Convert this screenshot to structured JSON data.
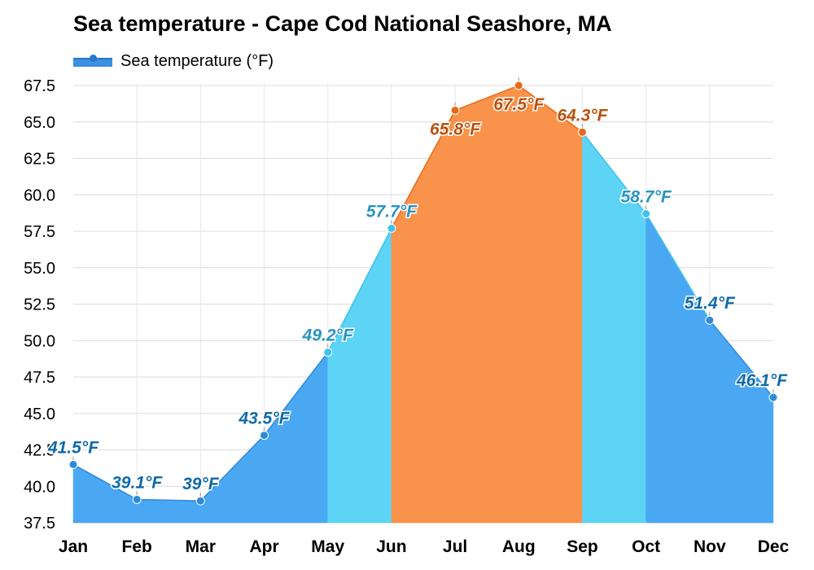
{
  "title": "Sea temperature - Cape Cod National Seashore, MA",
  "legend_label": "Sea temperature (°F)",
  "colors": {
    "cold": "#4aa8f3",
    "mild": "#5dd3f6",
    "warm": "#f9924a",
    "cold_line": "#2e8ad8",
    "mild_line": "#3ec2ee",
    "warm_line": "#e86a18",
    "cold_label": "#0f6aa8",
    "mild_label": "#2a93c2",
    "warm_label": "#b9520e"
  },
  "chart_data": {
    "type": "area",
    "title": "Sea temperature - Cape Cod National Seashore, MA",
    "xlabel": "",
    "ylabel": "",
    "categories": [
      "Jan",
      "Feb",
      "Mar",
      "Apr",
      "May",
      "Jun",
      "Jul",
      "Aug",
      "Sep",
      "Oct",
      "Nov",
      "Dec"
    ],
    "series": [
      {
        "name": "Sea temperature (°F)",
        "values": [
          41.5,
          39.1,
          39,
          43.5,
          49.2,
          57.7,
          65.8,
          67.5,
          64.3,
          58.7,
          51.4,
          46.1
        ],
        "labels": [
          "41.5°F",
          "39.1°F",
          "39°F",
          "43.5°F",
          "49.2°F",
          "57.7°F",
          "65.8°F",
          "67.5°F",
          "64.3°F",
          "58.7°F",
          "51.4°F",
          "46.1°F"
        ],
        "band": [
          "cold",
          "cold",
          "cold",
          "cold",
          "mild",
          "mild",
          "warm",
          "warm",
          "warm",
          "mild",
          "cold",
          "cold"
        ]
      }
    ],
    "ylim": [
      37.5,
      67.5
    ],
    "yticks": [
      "37.5",
      "40.0",
      "42.5",
      "45.0",
      "47.5",
      "50.0",
      "52.5",
      "55.0",
      "57.5",
      "60.0",
      "62.5",
      "65.0",
      "67.5"
    ],
    "grid": true,
    "legend": "top-left"
  }
}
